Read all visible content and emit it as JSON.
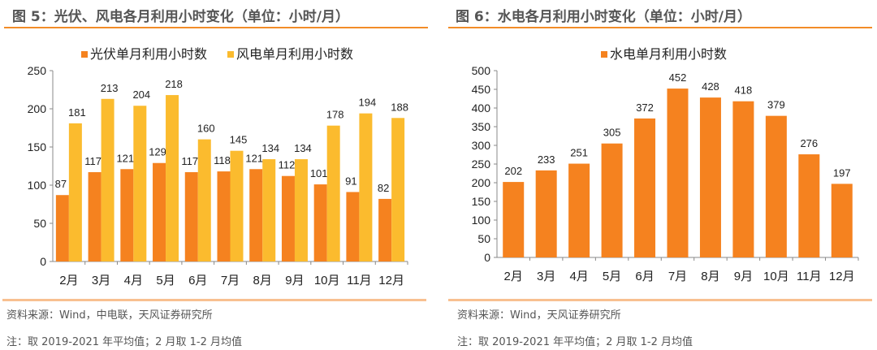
{
  "colors": {
    "solar": "#F5821F",
    "wind": "#FBBB2E",
    "hydro": "#F5821F",
    "accent": "#F28C28"
  },
  "left": {
    "title": "图 5：光伏、风电各月利用小时变化（单位：小时/月）",
    "source": "资料来源：Wind，中电联，天风证券研究所",
    "note": "注：取 2019-2021 年平均值；2 月取 1-2 月均值"
  },
  "right": {
    "title": "图 6：水电各月利用小时变化（单位：小时/月）",
    "source": "资料来源：Wind，天风证券研究所",
    "note": "注：取 2019-2021 年平均值；2 月取 1-2 月均值"
  },
  "chart_data": [
    {
      "type": "bar",
      "categories": [
        "2月",
        "3月",
        "4月",
        "5月",
        "6月",
        "7月",
        "8月",
        "9月",
        "10月",
        "11月",
        "12月"
      ],
      "series": [
        {
          "name": "光伏单月利用小时数",
          "values": [
            87,
            117,
            121,
            129,
            117,
            118,
            121,
            112,
            101,
            91,
            82
          ]
        },
        {
          "name": "风电单月利用小时数",
          "values": [
            181,
            213,
            204,
            218,
            160,
            145,
            134,
            134,
            178,
            194,
            188
          ]
        }
      ],
      "ylim": [
        0,
        250
      ],
      "yticks": [
        "0",
        "50",
        "100",
        "150",
        "200",
        "250"
      ],
      "legend": "top",
      "grid": false
    },
    {
      "type": "bar",
      "categories": [
        "2月",
        "3月",
        "4月",
        "5月",
        "6月",
        "7月",
        "8月",
        "9月",
        "10月",
        "11月",
        "12月"
      ],
      "series": [
        {
          "name": "水电单月利用小时数",
          "values": [
            202,
            233,
            251,
            305,
            372,
            452,
            428,
            418,
            379,
            276,
            197
          ]
        }
      ],
      "ylim": [
        0,
        500
      ],
      "yticks": [
        "0",
        "50",
        "100",
        "150",
        "200",
        "250",
        "300",
        "350",
        "400",
        "450",
        "500"
      ],
      "legend": "top",
      "grid": false
    }
  ]
}
